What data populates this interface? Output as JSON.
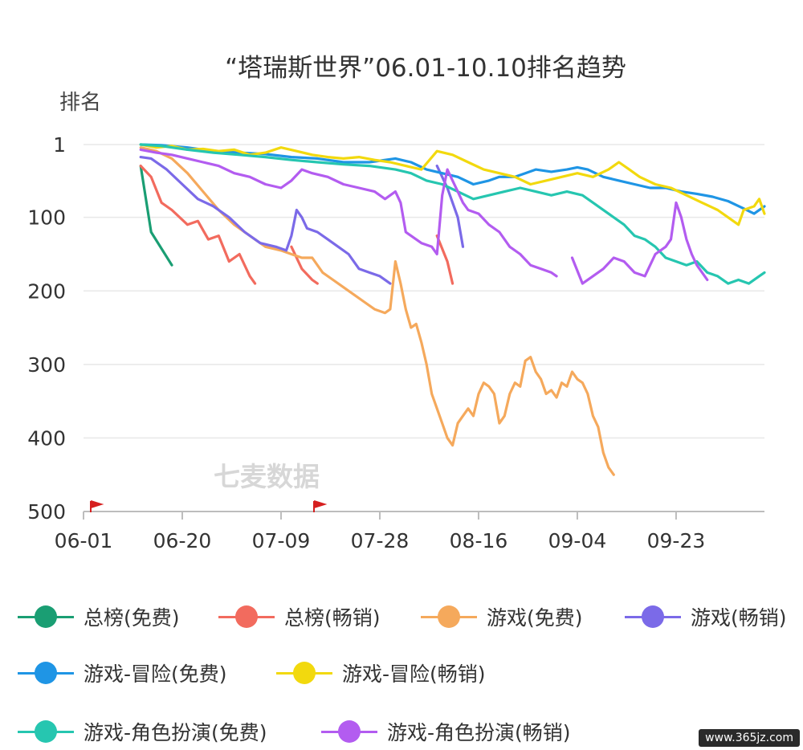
{
  "chart_data": {
    "type": "line",
    "title": "“塔瑞斯世界”06.01-10.10排名趋势",
    "ylabel": "排名",
    "watermark": "七麦数据",
    "y_inverted": true,
    "ylim": [
      1,
      500
    ],
    "xlim": [
      0,
      131
    ],
    "y_ticks": [
      1,
      100,
      200,
      300,
      400,
      500
    ],
    "x_ticks": [
      {
        "label": "06-01",
        "x": 0
      },
      {
        "label": "06-20",
        "x": 19
      },
      {
        "label": "07-09",
        "x": 38
      },
      {
        "label": "07-28",
        "x": 57
      },
      {
        "label": "08-16",
        "x": 76
      },
      {
        "label": "09-04",
        "x": 95
      },
      {
        "label": "09-23",
        "x": 114
      }
    ],
    "grid": true,
    "legend_position": "bottom",
    "series": [
      {
        "name": "总榜(免费)",
        "color": "#1a9e73",
        "points": [
          [
            11,
            30
          ],
          [
            13,
            120
          ],
          [
            17,
            165
          ]
        ]
      },
      {
        "name": "总榜(畅销)",
        "color": "#f26b5e",
        "points": [
          [
            11,
            30
          ],
          [
            13,
            45
          ],
          [
            15,
            80
          ],
          [
            17,
            90
          ],
          [
            20,
            110
          ],
          [
            22,
            105
          ],
          [
            24,
            130
          ],
          [
            26,
            125
          ],
          [
            28,
            160
          ],
          [
            30,
            150
          ],
          [
            32,
            180
          ],
          [
            33,
            190
          ],
          null,
          [
            40,
            140
          ],
          [
            42,
            170
          ],
          [
            44,
            185
          ],
          [
            45,
            190
          ],
          null,
          [
            68,
            125
          ],
          [
            70,
            160
          ],
          [
            71,
            190
          ]
        ]
      },
      {
        "name": "游戏(免费)",
        "color": "#f5a95c",
        "points": [
          [
            11,
            5
          ],
          [
            14,
            10
          ],
          [
            17,
            20
          ],
          [
            20,
            40
          ],
          [
            23,
            65
          ],
          [
            26,
            90
          ],
          [
            29,
            110
          ],
          [
            32,
            125
          ],
          [
            35,
            140
          ],
          [
            38,
            145
          ],
          [
            40,
            150
          ],
          [
            42,
            155
          ],
          [
            44,
            155
          ],
          [
            46,
            175
          ],
          [
            48,
            185
          ],
          [
            50,
            195
          ],
          [
            52,
            205
          ],
          [
            54,
            215
          ],
          [
            56,
            225
          ],
          [
            58,
            230
          ],
          [
            59,
            225
          ],
          [
            60,
            160
          ],
          [
            61,
            190
          ],
          [
            62,
            225
          ],
          [
            63,
            250
          ],
          [
            64,
            245
          ],
          [
            65,
            270
          ],
          [
            66,
            300
          ],
          [
            67,
            340
          ],
          [
            68,
            360
          ],
          [
            69,
            380
          ],
          [
            70,
            400
          ],
          [
            71,
            410
          ],
          [
            72,
            380
          ],
          [
            73,
            370
          ],
          [
            74,
            360
          ],
          [
            75,
            370
          ],
          [
            76,
            340
          ],
          [
            77,
            325
          ],
          [
            78,
            330
          ],
          [
            79,
            340
          ],
          [
            80,
            380
          ],
          [
            81,
            370
          ],
          [
            82,
            340
          ],
          [
            83,
            325
          ],
          [
            84,
            330
          ],
          [
            85,
            295
          ],
          [
            86,
            290
          ],
          [
            87,
            310
          ],
          [
            88,
            320
          ],
          [
            89,
            340
          ],
          [
            90,
            335
          ],
          [
            91,
            345
          ],
          [
            92,
            325
          ],
          [
            93,
            330
          ],
          [
            94,
            310
          ],
          [
            95,
            320
          ],
          [
            96,
            325
          ],
          [
            97,
            340
          ],
          [
            98,
            370
          ],
          [
            99,
            385
          ],
          [
            100,
            420
          ],
          [
            101,
            440
          ],
          [
            102,
            450
          ]
        ]
      },
      {
        "name": "游戏(畅销)",
        "color": "#7b6ae8",
        "points": [
          [
            11,
            18
          ],
          [
            13,
            20
          ],
          [
            16,
            35
          ],
          [
            19,
            55
          ],
          [
            22,
            75
          ],
          [
            25,
            85
          ],
          [
            28,
            100
          ],
          [
            31,
            120
          ],
          [
            34,
            135
          ],
          [
            37,
            140
          ],
          [
            39,
            145
          ],
          [
            40,
            125
          ],
          [
            41,
            90
          ],
          [
            42,
            100
          ],
          [
            43,
            115
          ],
          [
            45,
            120
          ],
          [
            47,
            130
          ],
          [
            49,
            140
          ],
          [
            51,
            150
          ],
          [
            53,
            170
          ],
          [
            55,
            175
          ],
          [
            57,
            180
          ],
          [
            59,
            190
          ],
          null,
          [
            68,
            30
          ],
          [
            70,
            60
          ],
          [
            72,
            100
          ],
          [
            73,
            140
          ]
        ]
      },
      {
        "name": "游戏-冒险(免费)",
        "color": "#1f95e5",
        "points": [
          [
            11,
            1
          ],
          [
            15,
            2
          ],
          [
            20,
            5
          ],
          [
            25,
            10
          ],
          [
            30,
            12
          ],
          [
            35,
            14
          ],
          [
            40,
            18
          ],
          [
            45,
            20
          ],
          [
            50,
            25
          ],
          [
            55,
            25
          ],
          [
            60,
            20
          ],
          [
            63,
            25
          ],
          [
            66,
            35
          ],
          [
            69,
            40
          ],
          [
            72,
            45
          ],
          [
            75,
            55
          ],
          [
            78,
            50
          ],
          [
            80,
            45
          ],
          [
            83,
            45
          ],
          [
            85,
            40
          ],
          [
            87,
            35
          ],
          [
            90,
            38
          ],
          [
            93,
            35
          ],
          [
            95,
            32
          ],
          [
            97,
            35
          ],
          [
            100,
            45
          ],
          [
            103,
            50
          ],
          [
            106,
            55
          ],
          [
            109,
            60
          ],
          [
            112,
            60
          ],
          [
            115,
            65
          ],
          [
            118,
            68
          ],
          [
            121,
            72
          ],
          [
            124,
            78
          ],
          [
            127,
            88
          ],
          [
            129,
            95
          ],
          [
            131,
            85
          ]
        ]
      },
      {
        "name": "游戏-冒险(畅销)",
        "color": "#f2d90e",
        "points": [
          [
            11,
            1
          ],
          [
            14,
            5
          ],
          [
            17,
            3
          ],
          [
            20,
            8
          ],
          [
            23,
            7
          ],
          [
            26,
            10
          ],
          [
            29,
            8
          ],
          [
            32,
            15
          ],
          [
            35,
            12
          ],
          [
            38,
            5
          ],
          [
            41,
            10
          ],
          [
            44,
            15
          ],
          [
            47,
            18
          ],
          [
            50,
            20
          ],
          [
            53,
            18
          ],
          [
            56,
            22
          ],
          [
            59,
            25
          ],
          [
            62,
            30
          ],
          [
            65,
            35
          ],
          [
            68,
            10
          ],
          [
            71,
            15
          ],
          [
            74,
            25
          ],
          [
            77,
            35
          ],
          [
            80,
            40
          ],
          [
            83,
            45
          ],
          [
            86,
            55
          ],
          [
            89,
            50
          ],
          [
            92,
            45
          ],
          [
            95,
            40
          ],
          [
            98,
            45
          ],
          [
            101,
            35
          ],
          [
            103,
            25
          ],
          [
            105,
            35
          ],
          [
            107,
            45
          ],
          [
            110,
            55
          ],
          [
            113,
            60
          ],
          [
            116,
            70
          ],
          [
            119,
            80
          ],
          [
            122,
            90
          ],
          [
            124,
            100
          ],
          [
            126,
            110
          ],
          [
            127,
            90
          ],
          [
            129,
            85
          ],
          [
            130,
            75
          ],
          [
            131,
            95
          ]
        ]
      },
      {
        "name": "游戏-角色扮演(免费)",
        "color": "#26c6b0",
        "points": [
          [
            11,
            1
          ],
          [
            15,
            3
          ],
          [
            20,
            8
          ],
          [
            25,
            12
          ],
          [
            30,
            15
          ],
          [
            35,
            18
          ],
          [
            40,
            22
          ],
          [
            45,
            25
          ],
          [
            50,
            28
          ],
          [
            55,
            30
          ],
          [
            60,
            35
          ],
          [
            63,
            40
          ],
          [
            66,
            50
          ],
          [
            69,
            55
          ],
          [
            72,
            65
          ],
          [
            75,
            75
          ],
          [
            78,
            70
          ],
          [
            81,
            65
          ],
          [
            84,
            60
          ],
          [
            87,
            65
          ],
          [
            90,
            70
          ],
          [
            93,
            65
          ],
          [
            96,
            70
          ],
          [
            99,
            85
          ],
          [
            102,
            100
          ],
          [
            104,
            110
          ],
          [
            106,
            125
          ],
          [
            108,
            130
          ],
          [
            110,
            140
          ],
          [
            112,
            155
          ],
          [
            114,
            160
          ],
          [
            116,
            165
          ],
          [
            118,
            160
          ],
          [
            120,
            175
          ],
          [
            122,
            180
          ],
          [
            124,
            190
          ],
          [
            126,
            185
          ],
          [
            128,
            190
          ],
          [
            130,
            180
          ],
          [
            131,
            175
          ]
        ]
      },
      {
        "name": "游戏-角色扮演(畅销)",
        "color": "#b35cf0",
        "points": [
          [
            11,
            8
          ],
          [
            14,
            12
          ],
          [
            17,
            15
          ],
          [
            20,
            20
          ],
          [
            23,
            25
          ],
          [
            26,
            30
          ],
          [
            29,
            40
          ],
          [
            32,
            45
          ],
          [
            35,
            55
          ],
          [
            38,
            60
          ],
          [
            40,
            50
          ],
          [
            42,
            35
          ],
          [
            44,
            40
          ],
          [
            47,
            45
          ],
          [
            50,
            55
          ],
          [
            53,
            60
          ],
          [
            56,
            65
          ],
          [
            58,
            75
          ],
          [
            60,
            65
          ],
          [
            61,
            80
          ],
          [
            62,
            120
          ],
          [
            63,
            125
          ],
          [
            65,
            135
          ],
          [
            67,
            140
          ],
          [
            68,
            150
          ],
          [
            69,
            70
          ],
          [
            70,
            35
          ],
          [
            71,
            50
          ],
          [
            72,
            65
          ],
          [
            73,
            80
          ],
          [
            74,
            90
          ],
          [
            76,
            95
          ],
          [
            78,
            110
          ],
          [
            80,
            120
          ],
          [
            82,
            140
          ],
          [
            84,
            150
          ],
          [
            86,
            165
          ],
          [
            88,
            170
          ],
          [
            90,
            175
          ],
          [
            91,
            180
          ],
          null,
          [
            94,
            155
          ],
          [
            96,
            190
          ],
          [
            98,
            180
          ],
          [
            100,
            170
          ],
          [
            102,
            155
          ],
          [
            104,
            160
          ],
          [
            106,
            175
          ],
          [
            108,
            180
          ],
          [
            110,
            150
          ],
          [
            112,
            140
          ],
          [
            113,
            130
          ],
          [
            114,
            80
          ],
          [
            115,
            100
          ],
          [
            116,
            130
          ],
          [
            117,
            150
          ],
          [
            118,
            165
          ],
          [
            120,
            185
          ]
        ]
      }
    ]
  },
  "site_badge": "www.365jz.com"
}
